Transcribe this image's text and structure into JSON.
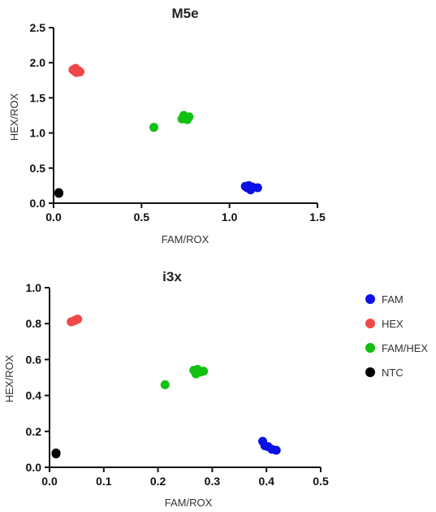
{
  "chart_data": [
    {
      "type": "scatter",
      "title": "M5e",
      "xlabel": "FAM/ROX",
      "ylabel": "HEX/ROX",
      "xlim": [
        0,
        1.5
      ],
      "ylim": [
        0,
        2.5
      ],
      "xticks": [
        0,
        0.5,
        1.0,
        1.5
      ],
      "xtick_labels": [
        "0.0",
        "0.5",
        "1.0",
        "1.5"
      ],
      "yticks": [
        0,
        0.5,
        1.0,
        1.5,
        2.0,
        2.5
      ],
      "ytick_labels": [
        "0.0",
        "0.5",
        "1.0",
        "1.5",
        "2.0",
        "2.5"
      ],
      "grid": false,
      "series": [
        {
          "ref": "FAM",
          "color": "#0a10e6",
          "points": [
            [
              1.09,
              0.24
            ],
            [
              1.1,
              0.22
            ],
            [
              1.11,
              0.25
            ],
            [
              1.12,
              0.19
            ],
            [
              1.13,
              0.23
            ],
            [
              1.16,
              0.22
            ]
          ]
        },
        {
          "ref": "HEX",
          "color": "#f04848",
          "points": [
            [
              0.11,
              1.9
            ],
            [
              0.12,
              1.88
            ],
            [
              0.125,
              1.92
            ],
            [
              0.13,
              1.86
            ],
            [
              0.14,
              1.89
            ],
            [
              0.15,
              1.87
            ]
          ]
        },
        {
          "ref": "FAM/HEX",
          "color": "#12c012",
          "points": [
            [
              0.57,
              1.08
            ],
            [
              0.73,
              1.2
            ],
            [
              0.74,
              1.25
            ],
            [
              0.75,
              1.22
            ],
            [
              0.76,
              1.19
            ],
            [
              0.77,
              1.23
            ]
          ]
        },
        {
          "ref": "NTC",
          "color": "#000000",
          "points": [
            [
              0.03,
              0.14
            ],
            [
              0.03,
              0.15
            ]
          ]
        }
      ]
    },
    {
      "type": "scatter",
      "title": "i3x",
      "xlabel": "FAM/ROX",
      "ylabel": "HEX/ROX",
      "xlim": [
        0,
        0.5
      ],
      "ylim": [
        0,
        1.0
      ],
      "xticks": [
        0,
        0.1,
        0.2,
        0.3,
        0.4,
        0.5
      ],
      "xtick_labels": [
        "0.0",
        "0.1",
        "0.2",
        "0.3",
        "0.4",
        "0.5"
      ],
      "yticks": [
        0,
        0.2,
        0.4,
        0.6,
        0.8,
        1.0
      ],
      "ytick_labels": [
        "0.0",
        "0.2",
        "0.4",
        "0.6",
        "0.8",
        "1.0"
      ],
      "grid": false,
      "series": [
        {
          "ref": "FAM",
          "color": "#0a10e6",
          "points": [
            [
              0.393,
              0.145
            ],
            [
              0.397,
              0.12
            ],
            [
              0.403,
              0.115
            ],
            [
              0.41,
              0.1
            ],
            [
              0.418,
              0.095
            ]
          ]
        },
        {
          "ref": "HEX",
          "color": "#f04848",
          "points": [
            [
              0.04,
              0.81
            ],
            [
              0.045,
              0.815
            ],
            [
              0.048,
              0.82
            ],
            [
              0.052,
              0.825
            ]
          ]
        },
        {
          "ref": "FAM/HEX",
          "color": "#12c012",
          "points": [
            [
              0.213,
              0.46
            ],
            [
              0.266,
              0.54
            ],
            [
              0.27,
              0.52
            ],
            [
              0.273,
              0.545
            ],
            [
              0.278,
              0.53
            ],
            [
              0.284,
              0.535
            ]
          ]
        },
        {
          "ref": "NTC",
          "color": "#000000",
          "points": [
            [
              0.012,
              0.08
            ],
            [
              0.012,
              0.075
            ]
          ]
        }
      ]
    }
  ],
  "legend": {
    "placement": "right",
    "items": [
      {
        "label": "FAM",
        "color": "#0a10e6"
      },
      {
        "label": "HEX",
        "color": "#f04848"
      },
      {
        "label": "FAM/HEX",
        "color": "#12c012"
      },
      {
        "label": "NTC",
        "color": "#000000"
      }
    ]
  }
}
